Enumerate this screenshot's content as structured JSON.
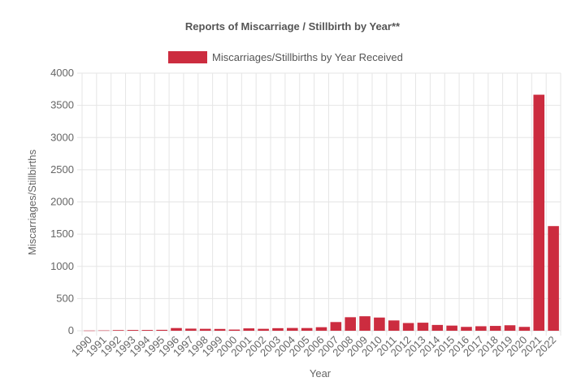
{
  "chart_data": {
    "type": "bar",
    "title": "Reports of Miscarriage / Stillbirth by Year**",
    "xlabel": "Year",
    "ylabel": "Miscarriages/Stillbirths",
    "categories": [
      "1990",
      "1991",
      "1992",
      "1993",
      "1994",
      "1995",
      "1996",
      "1997",
      "1998",
      "1999",
      "2000",
      "2001",
      "2002",
      "2003",
      "2004",
      "2005",
      "2006",
      "2007",
      "2008",
      "2009",
      "2010",
      "2011",
      "2012",
      "2013",
      "2014",
      "2015",
      "2016",
      "2017",
      "2018",
      "2019",
      "2020",
      "2021",
      "2022"
    ],
    "series": [
      {
        "name": "Miscarriages/Stillbirths by Year Received",
        "color": "#cc2c3f",
        "values": [
          3,
          5,
          10,
          12,
          12,
          14,
          42,
          33,
          30,
          28,
          18,
          37,
          30,
          40,
          43,
          42,
          55,
          135,
          210,
          225,
          205,
          160,
          120,
          125,
          90,
          80,
          60,
          70,
          75,
          85,
          60,
          3665,
          1625
        ]
      }
    ],
    "ylim": [
      0,
      4000
    ],
    "yticks": [
      0,
      500,
      1000,
      1500,
      2000,
      2500,
      3000,
      3500,
      4000
    ],
    "grid": true,
    "legend_position": "top"
  }
}
